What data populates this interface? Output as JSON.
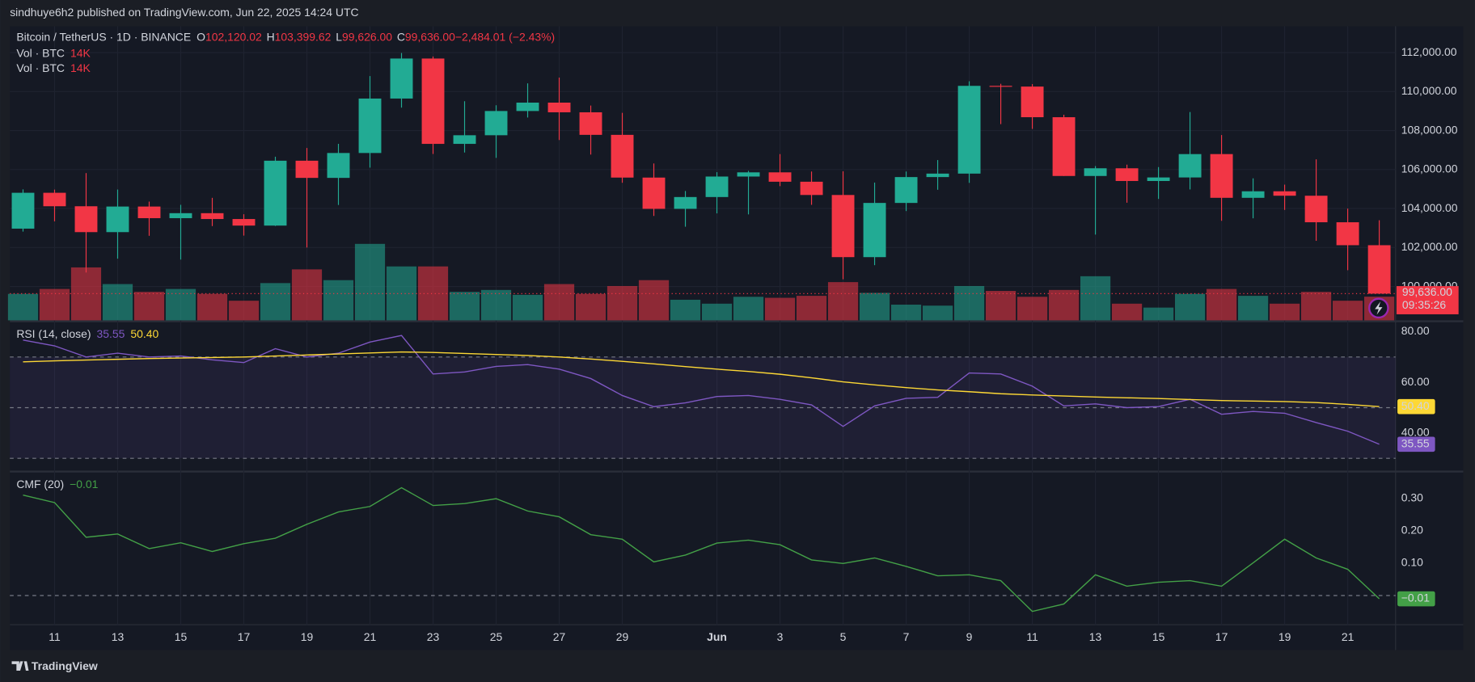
{
  "header": {
    "publisher": "sindhuye6h2 published on TradingView.com, Jun 22, 2025 14:24 UTC"
  },
  "footer": {
    "brand": "TradingView"
  },
  "chart_data": [
    {
      "type": "candlestick",
      "title": "Bitcoin / TetherUS · 1D · BINANCE",
      "legend": [
        {
          "key": "O",
          "value": "102,120.02"
        },
        {
          "key": "H",
          "value": "103,399.62"
        },
        {
          "key": "L",
          "value": "99,626.00"
        },
        {
          "key": "C",
          "value": "99,636.00"
        },
        {
          "key": "",
          "value": "−2,484.01 (−2.43%)"
        }
      ],
      "categories": [
        null,
        "11",
        null,
        "13",
        null,
        "15",
        null,
        "17",
        null,
        "19",
        null,
        "21",
        null,
        "23",
        null,
        "25",
        null,
        "27",
        null,
        "29",
        null,
        null,
        "Jun",
        null,
        "3",
        null,
        "5",
        null,
        "7",
        null,
        "9",
        null,
        "11",
        null,
        "13",
        null,
        "15",
        null,
        "17",
        null,
        "19",
        null,
        "21",
        null
      ],
      "open": [
        102970,
        104809,
        104118,
        102791,
        104103,
        103507,
        103763,
        103463,
        103126,
        106454,
        105573,
        106850,
        109643,
        111696,
        107318,
        107761,
        109004,
        109434,
        108938,
        107781,
        105589,
        103985,
        104591,
        105642,
        105857,
        105376,
        104696,
        101508,
        104288,
        105615,
        105793,
        110294,
        110257,
        108686,
        105671,
        106066,
        105414,
        105595,
        106794,
        104551,
        104886,
        104658,
        103297,
        102120.02
      ],
      "high": [
        104984,
        104972,
        105819,
        104976,
        104356,
        104192,
        104550,
        103709,
        106660,
        107108,
        107320,
        110797,
        111980,
        111800,
        109506,
        109299,
        110422,
        110718,
        109284,
        108910,
        106313,
        104900,
        105866,
        105935,
        106794,
        105900,
        105909,
        105333,
        105900,
        106488,
        110530,
        110400,
        110384,
        108813,
        106179,
        106252,
        106128,
        108952,
        107771,
        105550,
        105226,
        106524,
        103999,
        103399.62
      ],
      "low": [
        102818,
        103345,
        100719,
        101429,
        102602,
        101383,
        103100,
        102612,
        103105,
        102000,
        104184,
        106100,
        109177,
        106800,
        106875,
        106600,
        108670,
        107516,
        106769,
        105322,
        103621,
        103068,
        103752,
        103700,
        105150,
        104191,
        100372,
        101095,
        103871,
        104964,
        105318,
        108331,
        108086,
        105671,
        102664,
        104300,
        104494,
        104980,
        103371,
        103500,
        103930,
        102345,
        100837,
        99626
      ],
      "close": [
        104809,
        104118,
        102791,
        104103,
        103507,
        103763,
        103463,
        103126,
        106454,
        105573,
        106850,
        109643,
        111696,
        107318,
        107761,
        109004,
        109434,
        108938,
        107781,
        105589,
        103985,
        104591,
        105642,
        105857,
        105376,
        104696,
        101508,
        104288,
        105615,
        105793,
        110294,
        110257,
        108686,
        105671,
        106066,
        105414,
        105595,
        106794,
        104551,
        104886,
        104658,
        103297,
        102120,
        99636
      ],
      "up_color": "#22ab94",
      "down_color": "#f23645",
      "ylim": [
        98266,
        113349
      ],
      "yticks": [
        {
          "value": 100000,
          "label": "100,000.00"
        },
        {
          "value": 102000,
          "label": "102,000.00"
        },
        {
          "value": 104000,
          "label": "104,000.00"
        },
        {
          "value": 106000,
          "label": "106,000.00"
        },
        {
          "value": 108000,
          "label": "108,000.00"
        },
        {
          "value": 110000,
          "label": "110,000.00"
        },
        {
          "value": 112000,
          "label": "112,000.00"
        }
      ],
      "grid": true,
      "last_price_label": "99,636.00",
      "countdown": "09:35:26",
      "volume": {
        "name": "Vol · BTC",
        "last_label": "14K",
        "ylim": [
          0,
          174000
        ],
        "values": [
          15660,
          18560,
          31320,
          21460,
          16820,
          18560,
          15660,
          11600,
          22040,
          30160,
          23780,
          45240,
          31900,
          31900,
          16820,
          17980,
          15080,
          21460,
          15660,
          20300,
          23780,
          12180,
          9860,
          13920,
          13340,
          14500,
          22620,
          16240,
          9280,
          8700,
          20300,
          17400,
          13920,
          17980,
          26100,
          9860,
          7540,
          15660,
          18560,
          14500,
          9860,
          16820,
          11600,
          14000
        ]
      }
    },
    {
      "type": "line",
      "title": "RSI (14, close)",
      "ylim": [
        25.5,
        83
      ],
      "yticks": [
        {
          "value": 40,
          "label": "40.00"
        },
        {
          "value": 60,
          "label": "60.00"
        },
        {
          "value": 80,
          "label": "80.00"
        }
      ],
      "band_lines": [
        30,
        50,
        70
      ],
      "band_color": "#7e57c2",
      "series": [
        {
          "name": "RSI",
          "color": "#7e57c2",
          "last_value_label": "35.55",
          "values": [
            76.7,
            74.4,
            70,
            71.5,
            70,
            70.4,
            68.9,
            67.8,
            73.3,
            70,
            71.5,
            75.9,
            78.5,
            63.3,
            64.1,
            66.3,
            67,
            65.2,
            61.5,
            54.8,
            50.4,
            51.9,
            54.4,
            54.8,
            53.3,
            51.1,
            42.6,
            50.7,
            53.7,
            54.1,
            63.7,
            63.3,
            58.5,
            50.7,
            51.5,
            50,
            50.4,
            53.3,
            47.4,
            48.5,
            47.8,
            44.1,
            40.7,
            35.55
          ]
        },
        {
          "name": "RSI-based MA",
          "color": "#fdd835",
          "last_value_label": "50.40",
          "values": [
            68.1,
            68.5,
            68.8,
            69.1,
            69.4,
            69.6,
            69.8,
            70,
            70.4,
            70.8,
            71.2,
            71.6,
            72,
            71.8,
            71.4,
            71,
            70.6,
            70,
            69.2,
            68.3,
            67.3,
            66.2,
            65.2,
            64.3,
            63.2,
            61.8,
            60.2,
            59,
            57.9,
            57,
            56.3,
            55.5,
            55,
            54.6,
            54.2,
            53.9,
            53.6,
            53.2,
            52.8,
            52.6,
            52.4,
            52,
            51.3,
            50.4
          ]
        }
      ]
    },
    {
      "type": "line",
      "title": "CMF (20)",
      "ylim": [
        -0.09,
        0.374
      ],
      "yticks": [
        {
          "value": 0.1,
          "label": "0.10"
        },
        {
          "value": 0.2,
          "label": "0.20"
        },
        {
          "value": 0.3,
          "label": "0.30"
        }
      ],
      "band_lines": [
        0
      ],
      "series": [
        {
          "name": "CMF",
          "color": "#43a047",
          "last_value_label": "−0.01",
          "values": [
            0.31,
            0.287,
            0.18,
            0.19,
            0.145,
            0.163,
            0.136,
            0.16,
            0.177,
            0.22,
            0.258,
            0.275,
            0.333,
            0.278,
            0.284,
            0.299,
            0.261,
            0.243,
            0.188,
            0.174,
            0.104,
            0.125,
            0.162,
            0.171,
            0.157,
            0.11,
            0.099,
            0.116,
            0.09,
            0.061,
            0.064,
            0.046,
            -0.049,
            -0.026,
            0.064,
            0.029,
            0.041,
            0.046,
            0.029,
            0.101,
            0.174,
            0.116,
            0.081,
            -0.01
          ]
        }
      ]
    }
  ]
}
